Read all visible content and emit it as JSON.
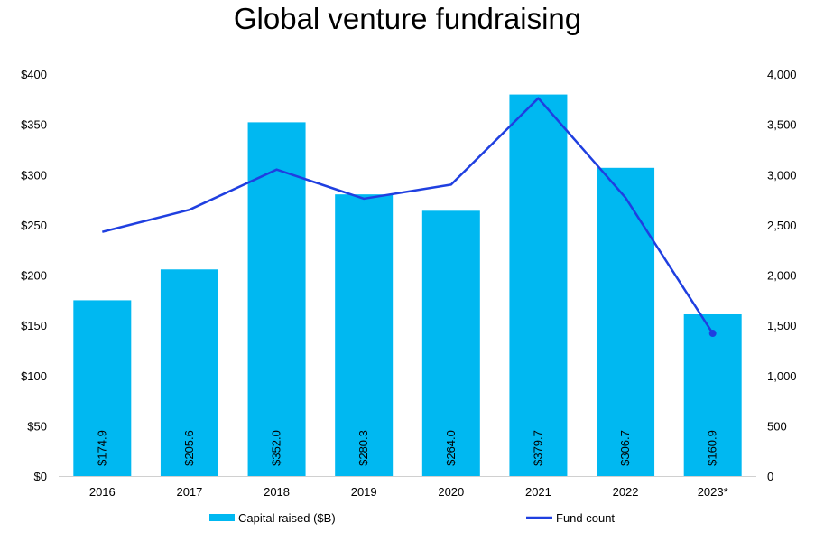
{
  "chart_data": {
    "type": "bar",
    "title": "Global venture fundraising",
    "categories": [
      "2016",
      "2017",
      "2018",
      "2019",
      "2020",
      "2021",
      "2022",
      "2023*"
    ],
    "series": [
      {
        "name": "Capital raised ($B)",
        "type": "bar",
        "axis": "left",
        "values": [
          174.9,
          205.6,
          352.0,
          280.3,
          264.0,
          379.7,
          306.7,
          160.9
        ],
        "labels": [
          "$174.9",
          "$205.6",
          "$352.0",
          "$280.3",
          "$264.0",
          "$379.7",
          "$306.7",
          "$160.9"
        ],
        "color": "#00B8F1"
      },
      {
        "name": "Fund count",
        "type": "line",
        "axis": "right",
        "values": [
          2430,
          2650,
          3050,
          2760,
          2900,
          3760,
          2770,
          1420
        ],
        "color": "#1F3FE0"
      }
    ],
    "y_left": {
      "ylim": [
        0,
        400
      ],
      "ticks": [
        0,
        50,
        100,
        150,
        200,
        250,
        300,
        350,
        400
      ],
      "tick_labels": [
        "$0",
        "$50",
        "$100",
        "$150",
        "$200",
        "$250",
        "$300",
        "$350",
        "$400"
      ]
    },
    "y_right": {
      "ylim": [
        0,
        4000
      ],
      "ticks": [
        0,
        500,
        1000,
        1500,
        2000,
        2500,
        3000,
        3500,
        4000
      ],
      "tick_labels": [
        "0",
        "500",
        "1,000",
        "1,500",
        "2,000",
        "2,500",
        "3,000",
        "3,500",
        "4,000"
      ]
    },
    "grid": false,
    "legend": "bottom"
  }
}
